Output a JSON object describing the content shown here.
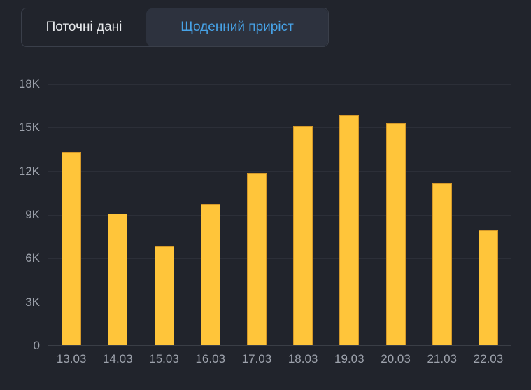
{
  "tabs": {
    "current_data": "Поточні дані",
    "daily_increase": "Щоденний приріст"
  },
  "colors": {
    "background": "#21242c",
    "bar": "#ffc53a",
    "bar_border": "#d4992b",
    "active_tab_bg": "#2d323e",
    "active_tab_text": "#47a3e8",
    "inactive_tab_text": "#e8eaed",
    "axis_label": "#9da2ac",
    "gridline": "#2c2f38",
    "axis_line": "#3a3e46",
    "tab_border": "#3a3f4a"
  },
  "chart_data": {
    "type": "bar",
    "title": "Щоденний приріст",
    "categories": [
      "13.03",
      "14.03",
      "15.03",
      "16.03",
      "17.03",
      "18.03",
      "19.03",
      "20.03",
      "21.03",
      "22.03"
    ],
    "values": [
      13300,
      9050,
      6800,
      9700,
      11850,
      15100,
      15900,
      15300,
      11150,
      7900
    ],
    "xlabel": "",
    "ylabel": "",
    "ylim": [
      0,
      18000
    ],
    "ytick_values": [
      18000,
      15000,
      12000,
      9000,
      6000,
      3000,
      0
    ],
    "ytick_labels": [
      "18K",
      "15K",
      "12K",
      "9K",
      "6K",
      "3K",
      "0"
    ],
    "grid": true,
    "legend": false,
    "bar_color": "#ffc53a"
  }
}
